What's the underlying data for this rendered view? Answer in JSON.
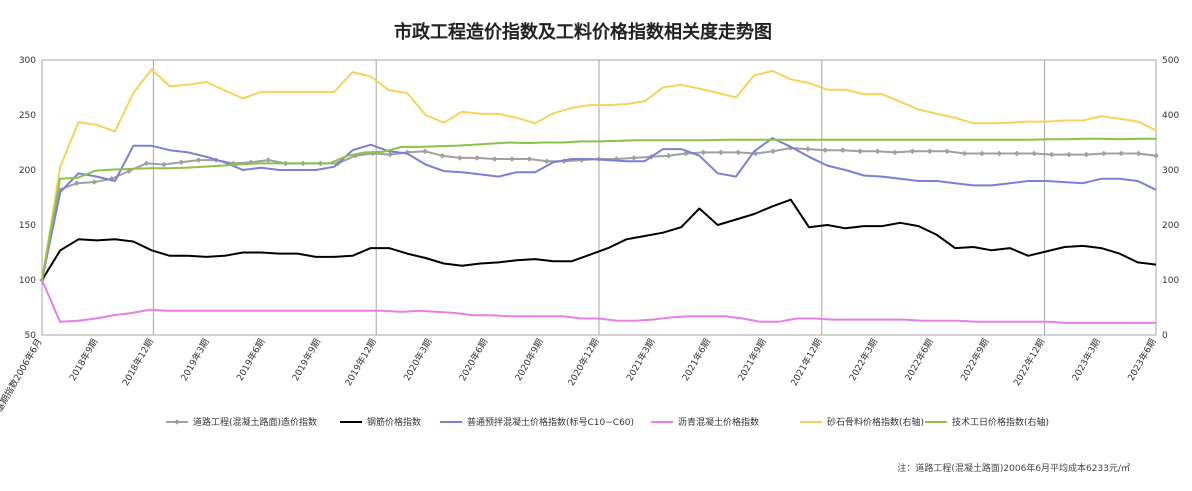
{
  "chart_data": {
    "type": "line",
    "title": "市政工程造价指数及工料价格指数相关度走势图",
    "note": "注：道路工程(混凝土路面)2006年6月平均成本6233元/㎡",
    "y_left": {
      "min": 50,
      "max": 300,
      "ticks": [
        50,
        100,
        150,
        200,
        250,
        300
      ]
    },
    "y_right": {
      "min": 0,
      "max": 500,
      "ticks": [
        0,
        100,
        200,
        300,
        400,
        500
      ]
    },
    "grid": "vertical lines at 2018年12期, 2019年12期, 2020年12期, 2021年12期, 2022年12期",
    "legend_position": "bottom",
    "x_tick_labels": [
      "基期指数2006年6月",
      "2018年9期",
      "2018年12期",
      "2019年3期",
      "2019年6期",
      "2019年9期",
      "2019年12期",
      "2020年3期",
      "2020年6期",
      "2020年9期",
      "2020年12期",
      "2021年3期",
      "2021年6期",
      "2021年9期",
      "2021年12期",
      "2022年3期",
      "2022年6期",
      "2022年9期",
      "2022年12期",
      "2023年3期",
      "2023年6期"
    ],
    "series": [
      {
        "name": "道路工程(混凝土路面)造价指数",
        "color": "#a0a0a0",
        "axis": "left",
        "marker": "diamond",
        "values": [
          100,
          182,
          188,
          189,
          192,
          199,
          206,
          205,
          207,
          209,
          209,
          206,
          207,
          209,
          206,
          206,
          206,
          206,
          213,
          215,
          214,
          216,
          217,
          213,
          211,
          211,
          210,
          210,
          210,
          208,
          208,
          209,
          210,
          210,
          211,
          212,
          213,
          215,
          216,
          216,
          216,
          215,
          217,
          220,
          219,
          218,
          218,
          217,
          217,
          216,
          217,
          217,
          217,
          215,
          215,
          215,
          215,
          215,
          214,
          214,
          214,
          215,
          215,
          215,
          213
        ]
      },
      {
        "name": "钢筋价格指数",
        "color": "#000000",
        "axis": "left",
        "marker": "none",
        "values": [
          100,
          127,
          137,
          136,
          137,
          135,
          127,
          122,
          122,
          121,
          122,
          125,
          125,
          124,
          124,
          121,
          121,
          122,
          129,
          129,
          124,
          120,
          115,
          113,
          115,
          116,
          118,
          119,
          117,
          117,
          123,
          129,
          137,
          140,
          143,
          148,
          165,
          150,
          155,
          160,
          167,
          173,
          148,
          150,
          147,
          149,
          149,
          152,
          149,
          141,
          129,
          130,
          127,
          129,
          122,
          126,
          130,
          131,
          129,
          124,
          116,
          114
        ]
      },
      {
        "name": "普通预拌混凝土价格指数(标号C10~C60)",
        "color": "#7b7fd6",
        "axis": "left",
        "marker": "none",
        "values": [
          100,
          180,
          197,
          194,
          190,
          222,
          222,
          218,
          216,
          212,
          207,
          200,
          202,
          200,
          200,
          200,
          203,
          218,
          223,
          217,
          215,
          205,
          199,
          198,
          196,
          194,
          198,
          198,
          207,
          210,
          210,
          209,
          208,
          208,
          219,
          219,
          213,
          197,
          194,
          217,
          229,
          221,
          212,
          204,
          200,
          195,
          194,
          192,
          190,
          190,
          188,
          186,
          186,
          188,
          190,
          190,
          189,
          188,
          192,
          192,
          190,
          182
        ]
      },
      {
        "name": "沥青混凝土价格指数",
        "color": "#e87ee8",
        "axis": "left",
        "marker": "none",
        "values": [
          100,
          62,
          63,
          65,
          68,
          70,
          73,
          72,
          72,
          72,
          72,
          72,
          72,
          72,
          72,
          72,
          72,
          72,
          72,
          72,
          71,
          72,
          71,
          70,
          68,
          68,
          67,
          67,
          67,
          67,
          65,
          65,
          63,
          63,
          64,
          66,
          67,
          67,
          67,
          65,
          62,
          62,
          65,
          65,
          64,
          64,
          64,
          64,
          64,
          63,
          63,
          63,
          62,
          62,
          62,
          62,
          62,
          61,
          61,
          61,
          61,
          61,
          61
        ]
      },
      {
        "name": "砂石骨料价格指数(右轴)",
        "color": "#f7d35c",
        "axis": "right",
        "marker": "none",
        "values": [
          100,
          307,
          387,
          382,
          370,
          440,
          483,
          452,
          455,
          460,
          445,
          430,
          442,
          442,
          442,
          442,
          442,
          478,
          470,
          445,
          440,
          400,
          386,
          406,
          402,
          402,
          395,
          385,
          403,
          413,
          418,
          418,
          420,
          425,
          450,
          455,
          448,
          440,
          432,
          472,
          480,
          465,
          458,
          446,
          446,
          438,
          438,
          424,
          410,
          402,
          395,
          385,
          385,
          386,
          388,
          388,
          390,
          390,
          398,
          393,
          388,
          372
        ]
      },
      {
        "name": "技术工日价格指数(右轴)",
        "color": "#8bc34a",
        "axis": "right",
        "marker": "none",
        "values": [
          100,
          284,
          286,
          299,
          301,
          302,
          303,
          303,
          304,
          306,
          308,
          310,
          312,
          312,
          312,
          312,
          312,
          326,
          332,
          333,
          342,
          342,
          343,
          344,
          346,
          348,
          350,
          349,
          350,
          350,
          352,
          352,
          353,
          354,
          354,
          354,
          354,
          354,
          355,
          355,
          355,
          355,
          355,
          355,
          355,
          355,
          355,
          355,
          355,
          355,
          355,
          355,
          355,
          355,
          355,
          355,
          356,
          356,
          357,
          357,
          356,
          357,
          357
        ]
      }
    ]
  }
}
